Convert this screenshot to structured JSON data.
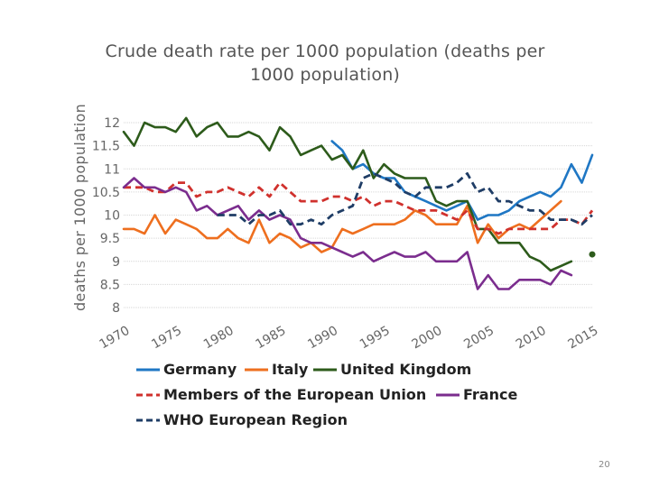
{
  "chart_data": {
    "type": "line",
    "title": "Crude death rate per 1000 population (deaths per 1000 population)",
    "title_lines": [
      "Crude death rate per 1000 population (deaths per",
      "1000 population)"
    ],
    "xlabel": "",
    "ylabel": "deaths per 1000 population",
    "xlim": [
      1970,
      2015
    ],
    "ylim": [
      8,
      12
    ],
    "x_ticks": [
      1970,
      1975,
      1980,
      1985,
      1990,
      1995,
      2000,
      2005,
      2010,
      2015
    ],
    "y_ticks": [
      8,
      8.5,
      9,
      9.5,
      10,
      10.5,
      11,
      11.5,
      12
    ],
    "y_tick_labels": [
      "8",
      "8.5",
      "9",
      "9.5",
      "10",
      "10.5",
      "11",
      "11.5",
      "12"
    ],
    "grid": true,
    "legend_position": "bottom",
    "series": [
      {
        "name": "Germany",
        "color": "#1f77c4",
        "dashed": false,
        "x": [
          1990,
          1991,
          1992,
          1993,
          1994,
          1995,
          1996,
          1997,
          1998,
          1999,
          2000,
          2001,
          2002,
          2003,
          2004,
          2005,
          2006,
          2007,
          2008,
          2009,
          2010,
          2011,
          2012,
          2013,
          2014,
          2015
        ],
        "values": [
          11.6,
          11.4,
          11.0,
          11.1,
          10.9,
          10.8,
          10.8,
          10.5,
          10.4,
          10.3,
          10.2,
          10.1,
          10.2,
          10.3,
          9.9,
          10.0,
          10.0,
          10.1,
          10.3,
          10.4,
          10.5,
          10.4,
          10.6,
          11.1,
          10.7,
          11.3
        ]
      },
      {
        "name": "Italy",
        "color": "#ee6f1f",
        "dashed": false,
        "x": [
          1970,
          1971,
          1972,
          1973,
          1974,
          1975,
          1976,
          1977,
          1978,
          1979,
          1980,
          1981,
          1982,
          1983,
          1984,
          1985,
          1986,
          1987,
          1988,
          1989,
          1990,
          1991,
          1992,
          1993,
          1994,
          1995,
          1996,
          1997,
          1998,
          1999,
          2000,
          2001,
          2002,
          2003,
          2004,
          2005,
          2006,
          2007,
          2008,
          2009,
          2010,
          2011,
          2012
        ],
        "values": [
          9.7,
          9.7,
          9.6,
          10.0,
          9.6,
          9.9,
          9.8,
          9.7,
          9.5,
          9.5,
          9.7,
          9.5,
          9.4,
          9.9,
          9.4,
          9.6,
          9.5,
          9.3,
          9.4,
          9.2,
          9.3,
          9.7,
          9.6,
          9.7,
          9.8,
          9.8,
          9.8,
          9.9,
          10.1,
          10.0,
          9.8,
          9.8,
          9.8,
          10.2,
          9.4,
          9.8,
          9.5,
          9.7,
          9.8,
          9.7,
          9.9,
          10.1,
          10.3
        ]
      },
      {
        "name": "United Kingdom",
        "color": "#2d5b1b",
        "dashed": false,
        "x": [
          1970,
          1971,
          1972,
          1973,
          1974,
          1975,
          1976,
          1977,
          1978,
          1979,
          1980,
          1981,
          1982,
          1983,
          1984,
          1985,
          1986,
          1987,
          1988,
          1989,
          1990,
          1991,
          1992,
          1993,
          1994,
          1995,
          1996,
          1997,
          1998,
          1999,
          2000,
          2001,
          2002,
          2003,
          2004,
          2005,
          2006,
          2007,
          2008,
          2009,
          2010,
          2011,
          2012,
          2013
        ],
        "values": [
          11.8,
          11.5,
          12.0,
          11.9,
          11.9,
          11.8,
          12.1,
          11.7,
          11.9,
          12.0,
          11.7,
          11.7,
          11.8,
          11.7,
          11.4,
          11.9,
          11.7,
          11.3,
          11.4,
          11.5,
          11.2,
          11.3,
          11.0,
          11.4,
          10.8,
          11.1,
          10.9,
          10.8,
          10.8,
          10.8,
          10.3,
          10.2,
          10.3,
          10.3,
          9.7,
          9.7,
          9.4,
          9.4,
          9.4,
          9.1,
          9.0,
          8.8,
          8.9,
          9.0
        ]
      },
      {
        "name": "Members of the European Union",
        "color": "#d0312d",
        "dashed": true,
        "x": [
          1970,
          1971,
          1972,
          1973,
          1974,
          1975,
          1976,
          1977,
          1978,
          1979,
          1980,
          1981,
          1982,
          1983,
          1984,
          1985,
          1986,
          1987,
          1988,
          1989,
          1990,
          1991,
          1992,
          1993,
          1994,
          1995,
          1996,
          1997,
          1998,
          1999,
          2000,
          2001,
          2002,
          2003,
          2004,
          2005,
          2006,
          2007,
          2008,
          2009,
          2010,
          2011,
          2012,
          2013,
          2014,
          2015
        ],
        "values": [
          10.6,
          10.6,
          10.6,
          10.5,
          10.5,
          10.7,
          10.7,
          10.4,
          10.5,
          10.5,
          10.6,
          10.5,
          10.4,
          10.6,
          10.4,
          10.7,
          10.5,
          10.3,
          10.3,
          10.3,
          10.4,
          10.4,
          10.3,
          10.4,
          10.2,
          10.3,
          10.3,
          10.2,
          10.1,
          10.1,
          10.1,
          10.0,
          9.9,
          10.1,
          9.7,
          9.7,
          9.6,
          9.7,
          9.7,
          9.7,
          9.7,
          9.7,
          9.9,
          9.9,
          9.8,
          10.1
        ]
      },
      {
        "name": "France",
        "color": "#7b2d8e",
        "dashed": false,
        "x": [
          1970,
          1971,
          1972,
          1973,
          1974,
          1975,
          1976,
          1977,
          1978,
          1979,
          1980,
          1981,
          1982,
          1983,
          1984,
          1985,
          1986,
          1987,
          1988,
          1989,
          1990,
          1991,
          1992,
          1993,
          1994,
          1995,
          1996,
          1997,
          1998,
          1999,
          2000,
          2001,
          2002,
          2003,
          2004,
          2005,
          2006,
          2007,
          2008,
          2009,
          2010,
          2011,
          2012,
          2013
        ],
        "values": [
          10.6,
          10.8,
          10.6,
          10.6,
          10.5,
          10.6,
          10.5,
          10.1,
          10.2,
          10.0,
          10.1,
          10.2,
          9.9,
          10.1,
          9.9,
          10.0,
          9.9,
          9.5,
          9.4,
          9.4,
          9.3,
          9.2,
          9.1,
          9.2,
          9.0,
          9.1,
          9.2,
          9.1,
          9.1,
          9.2,
          9.0,
          9.0,
          9.0,
          9.2,
          8.4,
          8.7,
          8.4,
          8.4,
          8.6,
          8.6,
          8.6,
          8.5,
          8.8,
          8.7
        ]
      },
      {
        "name": "WHO European Region",
        "color": "#1f3d66",
        "dashed": true,
        "x": [
          1979,
          1980,
          1981,
          1982,
          1983,
          1984,
          1985,
          1986,
          1987,
          1988,
          1989,
          1990,
          1991,
          1992,
          1993,
          1994,
          1995,
          1996,
          1997,
          1998,
          1999,
          2000,
          2001,
          2002,
          2003,
          2004,
          2005,
          2006,
          2007,
          2008,
          2009,
          2010,
          2011,
          2012,
          2013,
          2014,
          2015
        ],
        "values": [
          10.0,
          10.0,
          10.0,
          9.8,
          10.0,
          10.0,
          10.1,
          9.8,
          9.8,
          9.9,
          9.8,
          10.0,
          10.1,
          10.2,
          10.8,
          10.9,
          10.8,
          10.7,
          10.5,
          10.4,
          10.6,
          10.6,
          10.6,
          10.7,
          10.9,
          10.5,
          10.6,
          10.3,
          10.3,
          10.2,
          10.1,
          10.1,
          9.9,
          9.9,
          9.9,
          9.8,
          10.0
        ]
      }
    ],
    "annotations": [
      {
        "type": "point",
        "x": 2015,
        "y": 9.15,
        "color": "#2d5b1b"
      }
    ]
  },
  "legend": {
    "row1": [
      "Germany",
      "Italy",
      "United Kingdom"
    ],
    "row2": [
      "Members of the European Union",
      "France"
    ],
    "row3": [
      "WHO European Region"
    ]
  },
  "slide_number": "20"
}
